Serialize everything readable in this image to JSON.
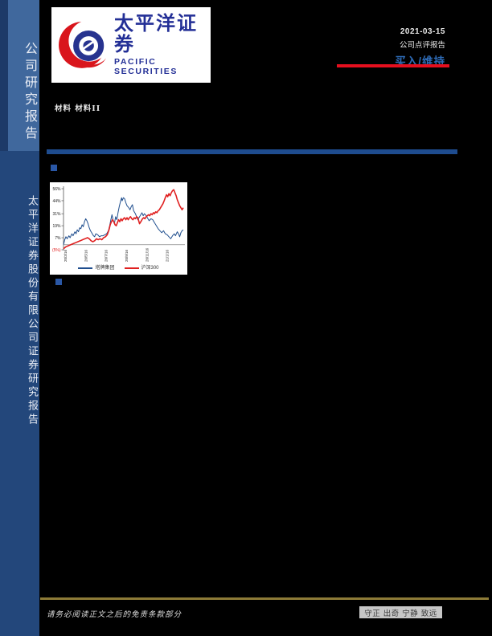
{
  "sidebar": {
    "top_text": "公司研究报告",
    "bottom_text": "太平洋证券股份有限公司证券研究报告"
  },
  "logo": {
    "cn": "太平洋证券",
    "en": "PACIFIC SECURITIES"
  },
  "header": {
    "date": "2021-03-15",
    "report_type": "公司点评报告",
    "rating": "买入/维持"
  },
  "sector": "材料 材料II",
  "footer": {
    "disclaimer": "请务必阅读正文之后的免责条款部分",
    "motto": "守正 出奇 宁静 致远"
  },
  "colors": {
    "accent_red": "#e50f1e",
    "rating_blue": "#2e6cb8",
    "rule_blue": "#1e4c8f",
    "sidebar_top_blue": "#40689d",
    "sidebar_bottom_blue": "#23477b",
    "gold_line": "#8d7b37"
  },
  "chart_data": {
    "type": "line",
    "title": "",
    "xlabel": "",
    "ylabel": "",
    "ylim": [
      -7,
      60
    ],
    "grid": false,
    "legend_position": "bottom",
    "y_axis": {
      "ticks": [
        {
          "label": "56%",
          "value": 56,
          "color": "#222222"
        },
        {
          "label": "44%",
          "value": 44,
          "color": "#222222"
        },
        {
          "label": "31%",
          "value": 31,
          "color": "#222222"
        },
        {
          "label": "19%",
          "value": 19,
          "color": "#222222"
        },
        {
          "label": "7%",
          "value": 7,
          "color": "#222222"
        },
        {
          "label": "(5%)",
          "value": -5,
          "color": "#e02020"
        }
      ]
    },
    "x_axis": {
      "ticks": [
        {
          "label": "20/3/16",
          "f": 0.013
        },
        {
          "label": "20/5/16",
          "f": 0.183
        },
        {
          "label": "20/7/16",
          "f": 0.353
        },
        {
          "label": "20/9/16",
          "f": 0.523
        },
        {
          "label": "20/11/16",
          "f": 0.693
        },
        {
          "label": "21/1/16",
          "f": 0.863
        }
      ]
    },
    "series": [
      {
        "name": "塔牌集团",
        "color": "#1f4e8e",
        "width": 1.0,
        "points": [
          [
            0.0,
            0
          ],
          [
            0.01,
            5
          ],
          [
            0.02,
            8
          ],
          [
            0.03,
            6
          ],
          [
            0.045,
            9
          ],
          [
            0.055,
            7
          ],
          [
            0.07,
            11
          ],
          [
            0.08,
            9
          ],
          [
            0.095,
            13
          ],
          [
            0.105,
            11
          ],
          [
            0.115,
            15
          ],
          [
            0.125,
            13
          ],
          [
            0.135,
            17
          ],
          [
            0.145,
            16
          ],
          [
            0.155,
            20
          ],
          [
            0.165,
            18
          ],
          [
            0.175,
            23
          ],
          [
            0.185,
            26
          ],
          [
            0.195,
            24
          ],
          [
            0.205,
            21
          ],
          [
            0.215,
            17
          ],
          [
            0.225,
            14
          ],
          [
            0.235,
            12
          ],
          [
            0.25,
            9
          ],
          [
            0.26,
            8
          ],
          [
            0.27,
            11
          ],
          [
            0.285,
            10
          ],
          [
            0.3,
            8
          ],
          [
            0.315,
            9
          ],
          [
            0.33,
            9
          ],
          [
            0.345,
            10
          ],
          [
            0.36,
            11
          ],
          [
            0.375,
            14
          ],
          [
            0.385,
            19
          ],
          [
            0.395,
            25
          ],
          [
            0.405,
            30
          ],
          [
            0.415,
            24
          ],
          [
            0.425,
            21
          ],
          [
            0.435,
            28
          ],
          [
            0.445,
            25
          ],
          [
            0.455,
            32
          ],
          [
            0.465,
            38
          ],
          [
            0.475,
            43
          ],
          [
            0.485,
            47
          ],
          [
            0.49,
            44
          ],
          [
            0.5,
            47
          ],
          [
            0.51,
            46
          ],
          [
            0.52,
            42
          ],
          [
            0.53,
            39
          ],
          [
            0.545,
            37
          ],
          [
            0.555,
            35
          ],
          [
            0.565,
            38
          ],
          [
            0.575,
            40
          ],
          [
            0.585,
            34
          ],
          [
            0.6,
            31
          ],
          [
            0.61,
            28
          ],
          [
            0.62,
            25
          ],
          [
            0.63,
            27
          ],
          [
            0.645,
            30
          ],
          [
            0.655,
            32
          ],
          [
            0.665,
            29
          ],
          [
            0.675,
            31
          ],
          [
            0.69,
            29
          ],
          [
            0.7,
            27
          ],
          [
            0.715,
            24
          ],
          [
            0.73,
            26
          ],
          [
            0.745,
            25
          ],
          [
            0.76,
            22
          ],
          [
            0.775,
            19
          ],
          [
            0.79,
            16
          ],
          [
            0.805,
            14
          ],
          [
            0.82,
            12
          ],
          [
            0.835,
            14
          ],
          [
            0.85,
            11
          ],
          [
            0.865,
            10
          ],
          [
            0.88,
            8
          ],
          [
            0.895,
            6
          ],
          [
            0.91,
            9
          ],
          [
            0.925,
            11
          ],
          [
            0.935,
            9
          ],
          [
            0.95,
            13
          ],
          [
            0.96,
            11
          ],
          [
            0.97,
            8
          ],
          [
            0.98,
            12
          ],
          [
            0.99,
            14
          ],
          [
            1.0,
            15
          ]
        ]
      },
      {
        "name": "沪深300",
        "color": "#e02020",
        "width": 1.6,
        "points": [
          [
            0.0,
            -4
          ],
          [
            0.02,
            -2
          ],
          [
            0.04,
            -1
          ],
          [
            0.06,
            0
          ],
          [
            0.08,
            1
          ],
          [
            0.1,
            2
          ],
          [
            0.12,
            3
          ],
          [
            0.14,
            4
          ],
          [
            0.16,
            5
          ],
          [
            0.18,
            6
          ],
          [
            0.2,
            7
          ],
          [
            0.215,
            6
          ],
          [
            0.23,
            4
          ],
          [
            0.245,
            3
          ],
          [
            0.26,
            4
          ],
          [
            0.275,
            6
          ],
          [
            0.29,
            5
          ],
          [
            0.305,
            6
          ],
          [
            0.32,
            5
          ],
          [
            0.335,
            7
          ],
          [
            0.35,
            8
          ],
          [
            0.365,
            10
          ],
          [
            0.38,
            15
          ],
          [
            0.39,
            20
          ],
          [
            0.4,
            23
          ],
          [
            0.41,
            25
          ],
          [
            0.42,
            23
          ],
          [
            0.43,
            20
          ],
          [
            0.44,
            19
          ],
          [
            0.45,
            22
          ],
          [
            0.46,
            25
          ],
          [
            0.47,
            23
          ],
          [
            0.48,
            26
          ],
          [
            0.49,
            24
          ],
          [
            0.5,
            26
          ],
          [
            0.51,
            27
          ],
          [
            0.52,
            25
          ],
          [
            0.53,
            27
          ],
          [
            0.54,
            25
          ],
          [
            0.55,
            27
          ],
          [
            0.56,
            28
          ],
          [
            0.57,
            26
          ],
          [
            0.58,
            25
          ],
          [
            0.59,
            27
          ],
          [
            0.6,
            26
          ],
          [
            0.61,
            28
          ],
          [
            0.62,
            27
          ],
          [
            0.635,
            21
          ],
          [
            0.65,
            24
          ],
          [
            0.66,
            26
          ],
          [
            0.67,
            27
          ],
          [
            0.68,
            26
          ],
          [
            0.69,
            28
          ],
          [
            0.7,
            29
          ],
          [
            0.71,
            30
          ],
          [
            0.72,
            29
          ],
          [
            0.73,
            31
          ],
          [
            0.74,
            30
          ],
          [
            0.75,
            32
          ],
          [
            0.76,
            31
          ],
          [
            0.77,
            33
          ],
          [
            0.78,
            32
          ],
          [
            0.79,
            34
          ],
          [
            0.8,
            35
          ],
          [
            0.81,
            37
          ],
          [
            0.82,
            39
          ],
          [
            0.83,
            41
          ],
          [
            0.84,
            44
          ],
          [
            0.85,
            47
          ],
          [
            0.86,
            50
          ],
          [
            0.87,
            48
          ],
          [
            0.88,
            51
          ],
          [
            0.89,
            49
          ],
          [
            0.9,
            52
          ],
          [
            0.91,
            54
          ],
          [
            0.92,
            55
          ],
          [
            0.93,
            52
          ],
          [
            0.94,
            49
          ],
          [
            0.95,
            45
          ],
          [
            0.96,
            42
          ],
          [
            0.97,
            39
          ],
          [
            0.98,
            37
          ],
          [
            0.99,
            35
          ],
          [
            1.0,
            37
          ]
        ]
      }
    ]
  }
}
